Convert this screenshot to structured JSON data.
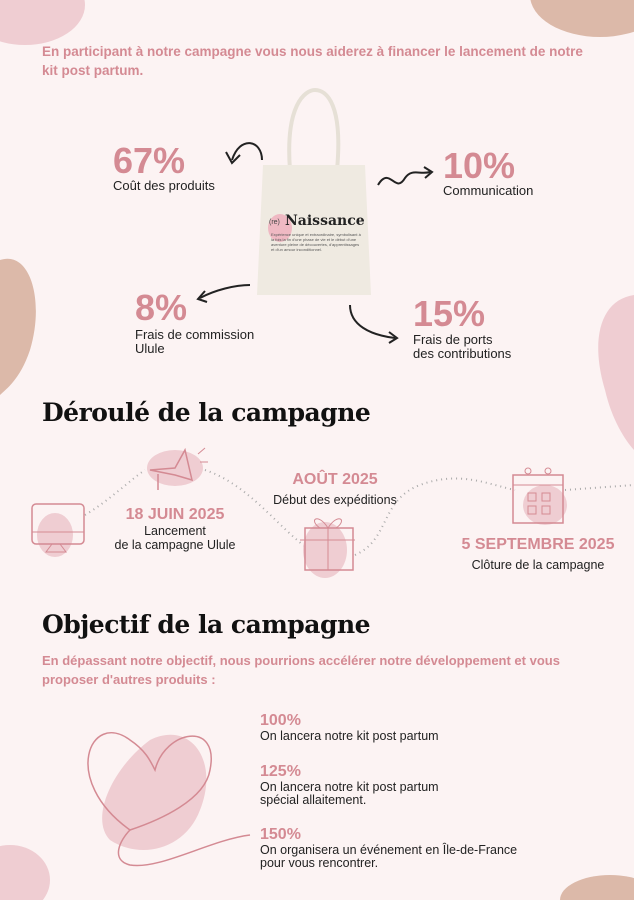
{
  "intro": "En participant à notre campagne vous nous aiderez à financer le lancement de notre kit post partum.",
  "bag": {
    "title": "Naissance",
    "prefix": "(re)",
    "body": "Expérience unique et extraordinaire, symbolisant à la fois la fin d'une phase de vie et le début d'une aventure pleine de découvertes, d'apprentissages et d'un amour inconditionnel."
  },
  "breakdown": [
    {
      "percent": "67%",
      "label": "Coût des produits"
    },
    {
      "percent": "10%",
      "label": "Communication"
    },
    {
      "percent": "8%",
      "label": "Frais de commission\nUlule"
    },
    {
      "percent": "15%",
      "label": "Frais de ports\ndes contributions"
    }
  ],
  "timeline": {
    "title": "Déroulé de la campagne",
    "steps": [
      {
        "date": "18 JUIN 2025",
        "label": "Lancement\nde la campagne Ulule",
        "icon": "computer-icon"
      },
      {
        "date": "AOÛT 2025",
        "label": "Début des expéditions",
        "icon": "gift-icon"
      },
      {
        "date": "5 SEPTEMBRE 2025",
        "label": "Clôture de la campagne",
        "icon": "calendar-icon"
      }
    ]
  },
  "goals": {
    "title": "Objectif de la campagne",
    "subtitle": "En dépassant notre objectif, nous pourrions accélérer notre développement et vous proposer d'autres produits :",
    "items": [
      {
        "percent": "100%",
        "label": "On lancera notre kit post partum"
      },
      {
        "percent": "125%",
        "label": "On lancera notre kit post partum\nspécial allaitement."
      },
      {
        "percent": "150%",
        "label": "On organisera un événement en Île-de-France\npour vous rencontrer."
      }
    ]
  },
  "colors": {
    "accent": "#d48a93",
    "blob_pink": "#efcdd2",
    "blob_beige": "#dcb9a9",
    "background": "#fcf3f3"
  }
}
